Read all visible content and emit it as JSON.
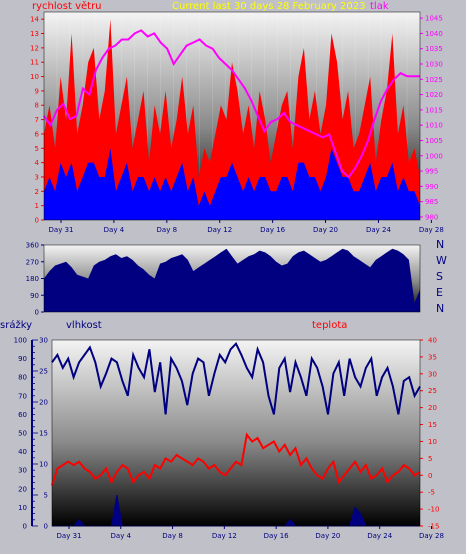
{
  "header": {
    "title": "Current last 30 days 28 February 2023",
    "wind_label": "rychlost větru",
    "pressure_label": "tlak"
  },
  "labels": {
    "rain": "srážky",
    "humidity": "vlhkost",
    "temperature": "teplota"
  },
  "compass": [
    "N",
    "W",
    "S",
    "E",
    "N"
  ],
  "colors": {
    "title": "#ffff00",
    "wind": "#ff0000",
    "gust": "#0000ff",
    "pressure": "#ff00ff",
    "direction": "#000080",
    "humidity": "#000080",
    "temperature": "#ff0000",
    "rain": "#000080"
  },
  "chart_data": [
    {
      "type": "area",
      "x_ticks": [
        "Day 31",
        "Day 4",
        "Day 8",
        "Day 12",
        "Day 16",
        "Day 20",
        "Day 24",
        "Day 28"
      ],
      "y_left_ticks": [
        0,
        1,
        2,
        3,
        4,
        5,
        6,
        7,
        8,
        9,
        10,
        11,
        12,
        13,
        14
      ],
      "y_right_ticks": [
        980,
        985,
        990,
        995,
        1000,
        1005,
        1010,
        1015,
        1020,
        1025,
        1030,
        1035,
        1040,
        1045
      ],
      "ylim_left": [
        0,
        14.5
      ],
      "ylim_right": [
        979,
        1047
      ],
      "series": [
        {
          "name": "rychlost větru",
          "axis": "left",
          "values": [
            6,
            8,
            5,
            10,
            7,
            13,
            6,
            8,
            11,
            12,
            7,
            9,
            14,
            6,
            8,
            10,
            5,
            7,
            9,
            4,
            8,
            6,
            9,
            5,
            7,
            10,
            6,
            8,
            3,
            5,
            4,
            6,
            8,
            7,
            11,
            9,
            6,
            8,
            5,
            9,
            7,
            4,
            6,
            8,
            9,
            5,
            10,
            12,
            7,
            9,
            6,
            8,
            13,
            11,
            7,
            9,
            5,
            6,
            8,
            10,
            4,
            7,
            9,
            13,
            6,
            8,
            4,
            5,
            3
          ]
        },
        {
          "name": "",
          "axis": "left",
          "values": [
            2,
            3,
            2,
            4,
            3,
            4,
            2,
            3,
            4,
            4,
            3,
            3,
            5,
            2,
            3,
            4,
            2,
            3,
            3,
            2,
            3,
            2,
            3,
            2,
            3,
            4,
            2,
            3,
            1,
            2,
            1,
            2,
            3,
            3,
            4,
            3,
            2,
            3,
            2,
            3,
            3,
            2,
            2,
            3,
            3,
            2,
            4,
            4,
            3,
            3,
            2,
            3,
            5,
            4,
            3,
            3,
            2,
            2,
            3,
            4,
            2,
            3,
            3,
            4,
            2,
            3,
            2,
            2,
            1
          ]
        },
        {
          "name": "tlak",
          "axis": "right",
          "x": [
            0,
            0.5,
            1,
            1.5,
            2,
            2.5,
            3,
            3.5,
            4,
            4.5,
            5,
            5.5,
            6,
            6.5,
            7,
            7.5,
            8,
            8.5,
            9,
            9.5,
            10,
            10.5,
            11,
            11.5,
            12,
            12.5,
            13,
            13.5,
            14,
            14.5,
            15,
            15.5,
            16,
            16.5,
            17,
            17.5,
            18,
            18.5,
            19,
            19.5,
            20,
            20.5,
            21,
            21.5,
            22,
            22.5,
            23,
            23.5,
            24,
            24.5,
            25,
            25.5,
            26,
            26.5,
            27,
            27.5,
            28,
            28.5,
            29
          ],
          "values": [
            1013,
            1010,
            1015,
            1017,
            1012,
            1013,
            1022,
            1020,
            1028,
            1032,
            1035,
            1036,
            1038,
            1038,
            1040,
            1041,
            1039,
            1040,
            1037,
            1035,
            1030,
            1033,
            1036,
            1037,
            1038,
            1036,
            1035,
            1032,
            1030,
            1028,
            1025,
            1022,
            1018,
            1013,
            1008,
            1011,
            1012,
            1014,
            1011,
            1010,
            1009,
            1008,
            1007,
            1006,
            1007,
            1001,
            995,
            993,
            996,
            1000,
            1005,
            1012,
            1018,
            1022,
            1025,
            1027,
            1026,
            1026,
            1026
          ]
        }
      ]
    },
    {
      "type": "area",
      "x_ticks": [
        "Day 31",
        "Day 4",
        "Day 8",
        "Day 12",
        "Day 16",
        "Day 20",
        "Day 24",
        "Day 28"
      ],
      "y_left_ticks": [
        0,
        90,
        180,
        270,
        360
      ],
      "ylim_left": [
        0,
        360
      ],
      "series": [
        {
          "name": "",
          "values": [
            180,
            220,
            250,
            260,
            270,
            240,
            200,
            190,
            180,
            250,
            270,
            280,
            300,
            310,
            290,
            300,
            280,
            250,
            230,
            200,
            180,
            260,
            270,
            290,
            300,
            310,
            280,
            220,
            240,
            260,
            280,
            300,
            320,
            340,
            300,
            260,
            280,
            300,
            310,
            330,
            320,
            300,
            270,
            250,
            260,
            300,
            320,
            330,
            310,
            290,
            270,
            280,
            300,
            320,
            340,
            330,
            300,
            280,
            260,
            240,
            280,
            300,
            320,
            340,
            330,
            310,
            280,
            50,
            120
          ]
        }
      ]
    },
    {
      "type": "line",
      "x_ticks": [
        "Day 31",
        "Day 4",
        "Day 8",
        "Day 12",
        "Day 16",
        "Day 20",
        "Day 24",
        "Day 28"
      ],
      "y_rain_ticks": [
        0,
        5,
        10,
        15,
        20,
        25,
        30
      ],
      "y_left_ticks": [
        0,
        10,
        20,
        30,
        40,
        50,
        60,
        70,
        80,
        90,
        100
      ],
      "y_right_ticks": [
        -15,
        -10,
        -5,
        0,
        5,
        10,
        15,
        20,
        25,
        30,
        35,
        40
      ],
      "ylim_left": [
        0,
        100
      ],
      "ylim_right": [
        -15,
        40
      ],
      "series": [
        {
          "name": "vlhkost",
          "axis": "left",
          "values": [
            88,
            92,
            85,
            90,
            80,
            88,
            92,
            96,
            88,
            75,
            82,
            90,
            88,
            78,
            70,
            92,
            85,
            80,
            95,
            72,
            88,
            60,
            90,
            85,
            78,
            65,
            82,
            90,
            88,
            70,
            82,
            92,
            88,
            95,
            98,
            92,
            85,
            80,
            95,
            88,
            70,
            60,
            85,
            90,
            72,
            88,
            80,
            70,
            90,
            85,
            75,
            60,
            82,
            88,
            70,
            90,
            80,
            75,
            85,
            90,
            70,
            80,
            85,
            75,
            60,
            78,
            80,
            70,
            75
          ]
        },
        {
          "name": "teplota",
          "axis": "right",
          "values": [
            -3,
            2,
            3,
            4,
            3,
            4,
            2,
            1,
            -1,
            0,
            2,
            -2,
            1,
            3,
            2,
            -2,
            0,
            1,
            -1,
            3,
            2,
            5,
            4,
            6,
            5,
            4,
            3,
            5,
            4,
            2,
            3,
            1,
            0,
            2,
            4,
            3,
            12,
            10,
            11,
            8,
            9,
            10,
            7,
            9,
            6,
            8,
            3,
            5,
            2,
            0,
            -1,
            2,
            4,
            -2,
            0,
            2,
            4,
            1,
            3,
            -1,
            0,
            2,
            -2,
            0,
            1,
            3,
            2,
            0,
            1
          ]
        },
        {
          "name": "srážky",
          "axis": "rain",
          "values": [
            0,
            0,
            0,
            0,
            0,
            1,
            0,
            0,
            0,
            0,
            0,
            0,
            5,
            0,
            0,
            0,
            0,
            0,
            0,
            0,
            0,
            0,
            0,
            0,
            0,
            0,
            0,
            0,
            0,
            0,
            0,
            0,
            0,
            0,
            0,
            0,
            0,
            0,
            0,
            0,
            0,
            0,
            0,
            0,
            1,
            0,
            0,
            0,
            0,
            0,
            0,
            0,
            0,
            0,
            0,
            0,
            3,
            2,
            0,
            0,
            0,
            0,
            0,
            0,
            0,
            0,
            0,
            0,
            0
          ]
        }
      ]
    }
  ]
}
